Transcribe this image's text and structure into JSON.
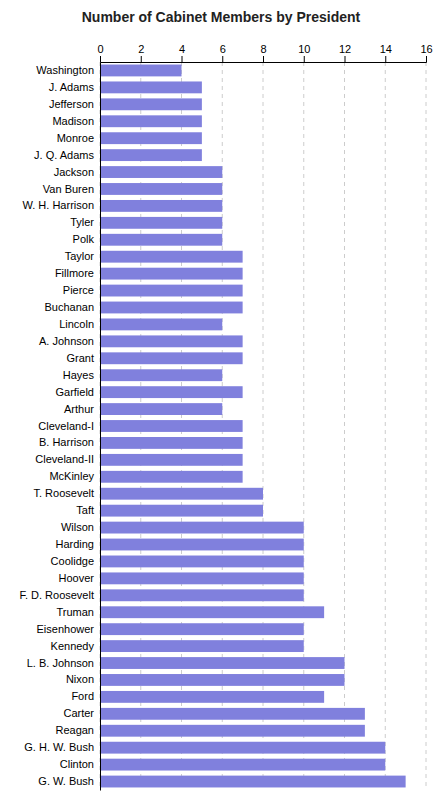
{
  "chart_data": {
    "type": "bar",
    "orientation": "horizontal",
    "title": "Number of Cabinet Members by President",
    "categories": [
      "Washington",
      "J. Adams",
      "Jefferson",
      "Madison",
      "Monroe",
      "J. Q. Adams",
      "Jackson",
      "Van Buren",
      "W. H. Harrison",
      "Tyler",
      "Polk",
      "Taylor",
      "Fillmore",
      "Pierce",
      "Buchanan",
      "Lincoln",
      "A. Johnson",
      "Grant",
      "Hayes",
      "Garfield",
      "Arthur",
      "Cleveland-I",
      "B. Harrison",
      "Cleveland-II",
      "McKinley",
      "T. Roosevelt",
      "Taft",
      "Wilson",
      "Harding",
      "Coolidge",
      "Hoover",
      "F. D. Roosevelt",
      "Truman",
      "Eisenhower",
      "Kennedy",
      "L. B. Johnson",
      "Nixon",
      "Ford",
      "Carter",
      "Reagan",
      "G. H. W. Bush",
      "Clinton",
      "G. W. Bush"
    ],
    "values": [
      4,
      5,
      5,
      5,
      5,
      5,
      6,
      6,
      6,
      6,
      6,
      7,
      7,
      7,
      7,
      6,
      7,
      7,
      6,
      7,
      6,
      7,
      7,
      7,
      7,
      8,
      8,
      10,
      10,
      10,
      10,
      10,
      11,
      10,
      10,
      12,
      12,
      11,
      13,
      13,
      14,
      14,
      15
    ],
    "color": "#8080dd",
    "xlim": [
      0,
      16
    ],
    "xticks": [
      0,
      2,
      4,
      6,
      8,
      10,
      12,
      14,
      16
    ],
    "grid": true
  }
}
